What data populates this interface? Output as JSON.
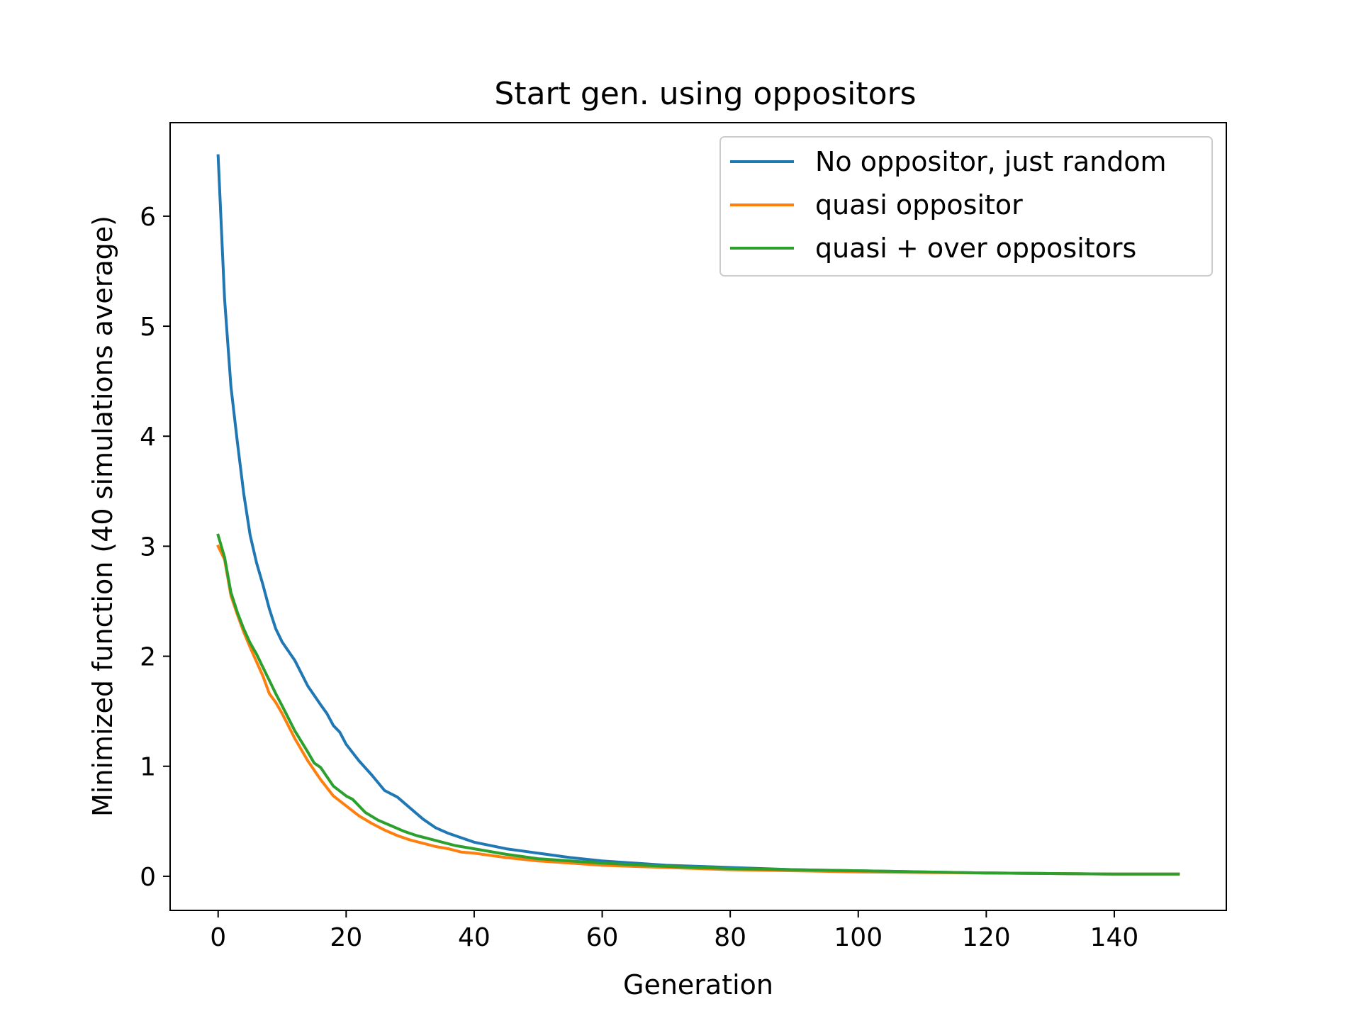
{
  "chart_data": {
    "type": "line",
    "title": "Start gen. using oppositors",
    "xlabel": "Generation",
    "ylabel": "Minimized function (40 simulations average)",
    "xlim": [
      -7.5,
      157.5
    ],
    "ylim": [
      -0.31,
      6.85
    ],
    "xticks": [
      0,
      20,
      40,
      60,
      80,
      100,
      120,
      140
    ],
    "yticks": [
      0,
      1,
      2,
      3,
      4,
      5,
      6
    ],
    "grid": false,
    "legend_position": "top-right",
    "series": [
      {
        "name": "No oppositor, just random",
        "color": "#1f77b4",
        "x": [
          0,
          1,
          2,
          3,
          4,
          5,
          6,
          7,
          8,
          9,
          10,
          12,
          14,
          16,
          17,
          18,
          19,
          20,
          22,
          24,
          26,
          28,
          30,
          32,
          34,
          36,
          38,
          40,
          45,
          50,
          55,
          60,
          70,
          80,
          90,
          100,
          110,
          120,
          130,
          140,
          150
        ],
        "y": [
          6.55,
          5.25,
          4.45,
          3.95,
          3.48,
          3.1,
          2.85,
          2.65,
          2.43,
          2.25,
          2.13,
          1.96,
          1.73,
          1.56,
          1.48,
          1.37,
          1.31,
          1.2,
          1.05,
          0.92,
          0.78,
          0.72,
          0.62,
          0.52,
          0.44,
          0.39,
          0.35,
          0.31,
          0.25,
          0.21,
          0.17,
          0.14,
          0.1,
          0.08,
          0.06,
          0.05,
          0.04,
          0.03,
          0.025,
          0.02,
          0.02
        ]
      },
      {
        "name": "quasi oppositor",
        "color": "#ff7f0e",
        "x": [
          0,
          1,
          2,
          3,
          4,
          5,
          6,
          7,
          8,
          9,
          10,
          12,
          14,
          16,
          18,
          20,
          22,
          24,
          26,
          28,
          30,
          32,
          34,
          36,
          38,
          40,
          45,
          50,
          55,
          60,
          70,
          80,
          90,
          100,
          110,
          120,
          130,
          140,
          150
        ],
        "y": [
          3.0,
          2.88,
          2.55,
          2.38,
          2.22,
          2.08,
          1.95,
          1.82,
          1.66,
          1.58,
          1.48,
          1.25,
          1.05,
          0.88,
          0.73,
          0.64,
          0.55,
          0.48,
          0.42,
          0.37,
          0.33,
          0.3,
          0.27,
          0.25,
          0.22,
          0.21,
          0.17,
          0.14,
          0.12,
          0.1,
          0.08,
          0.06,
          0.05,
          0.04,
          0.035,
          0.03,
          0.025,
          0.02,
          0.02
        ]
      },
      {
        "name": "quasi + over oppositors",
        "color": "#2ca02c",
        "x": [
          0,
          1,
          2,
          3,
          4,
          5,
          6,
          7,
          8,
          9,
          10,
          12,
          14,
          15,
          16,
          18,
          20,
          21,
          23,
          25,
          27,
          29,
          31,
          33,
          35,
          37,
          40,
          45,
          50,
          55,
          60,
          70,
          80,
          90,
          100,
          110,
          120,
          130,
          140,
          150
        ],
        "y": [
          3.1,
          2.9,
          2.58,
          2.4,
          2.25,
          2.12,
          2.02,
          1.9,
          1.78,
          1.66,
          1.55,
          1.32,
          1.13,
          1.03,
          0.99,
          0.82,
          0.73,
          0.7,
          0.58,
          0.51,
          0.46,
          0.41,
          0.37,
          0.34,
          0.31,
          0.28,
          0.25,
          0.2,
          0.16,
          0.14,
          0.12,
          0.09,
          0.07,
          0.06,
          0.05,
          0.04,
          0.03,
          0.025,
          0.02,
          0.02
        ]
      }
    ]
  }
}
